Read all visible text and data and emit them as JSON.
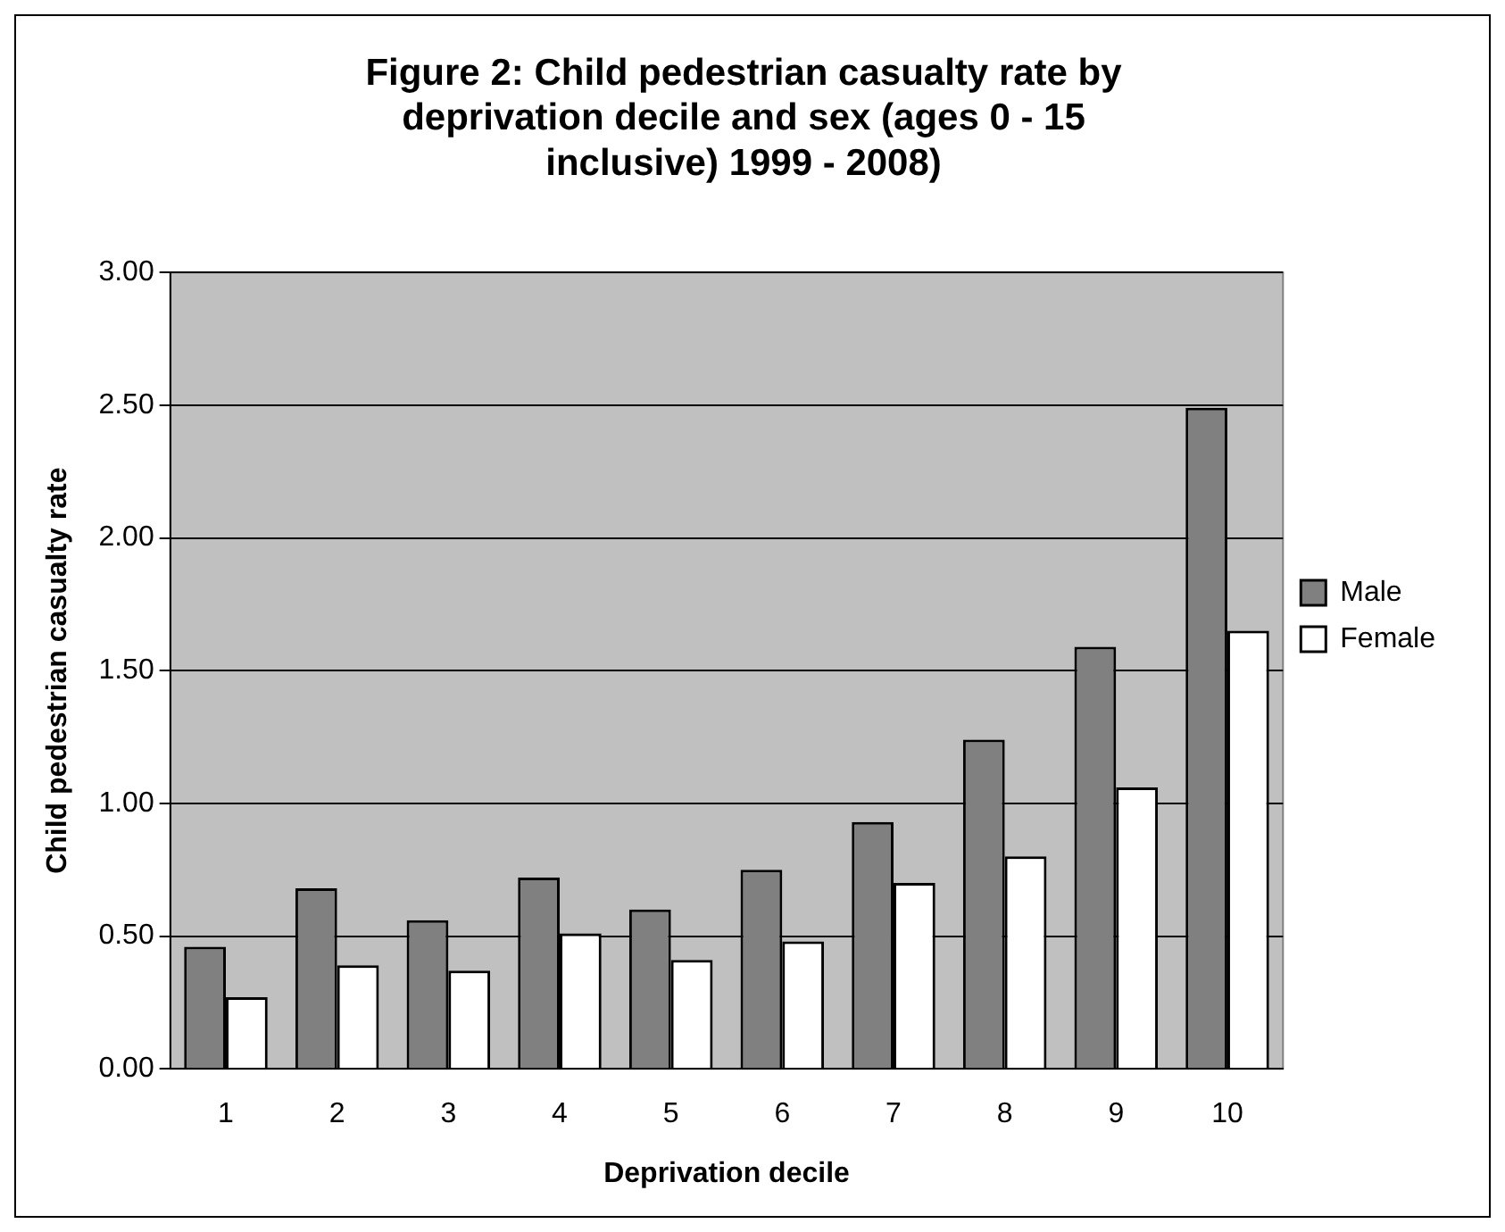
{
  "chart_data": {
    "type": "bar",
    "title": "Figure 2: Child pedestrian casualty rate by deprivation decile and sex (ages 0 - 15 inclusive) 1999 - 2008)",
    "xlabel": "Deprivation decile",
    "ylabel": "Child pedestrian casualty rate",
    "categories": [
      "1",
      "2",
      "3",
      "4",
      "5",
      "6",
      "7",
      "8",
      "9",
      "10"
    ],
    "series": [
      {
        "name": "Male",
        "color": "#808080",
        "values": [
          0.46,
          0.68,
          0.56,
          0.72,
          0.6,
          0.75,
          0.93,
          1.24,
          1.59,
          2.49
        ]
      },
      {
        "name": "Female",
        "color": "#ffffff",
        "values": [
          0.27,
          0.39,
          0.37,
          0.51,
          0.41,
          0.48,
          0.7,
          0.8,
          1.06,
          1.65
        ]
      }
    ],
    "ylim": [
      0,
      3
    ],
    "yticks": [
      {
        "value": 0,
        "label": "0.00"
      },
      {
        "value": 0.5,
        "label": "0.50"
      },
      {
        "value": 1,
        "label": "1.00"
      },
      {
        "value": 1.5,
        "label": "1.50"
      },
      {
        "value": 2,
        "label": "2.00"
      },
      {
        "value": 2.5,
        "label": "2.50"
      },
      {
        "value": 3,
        "label": "3.00"
      }
    ],
    "grid": "y",
    "legend": "right"
  }
}
